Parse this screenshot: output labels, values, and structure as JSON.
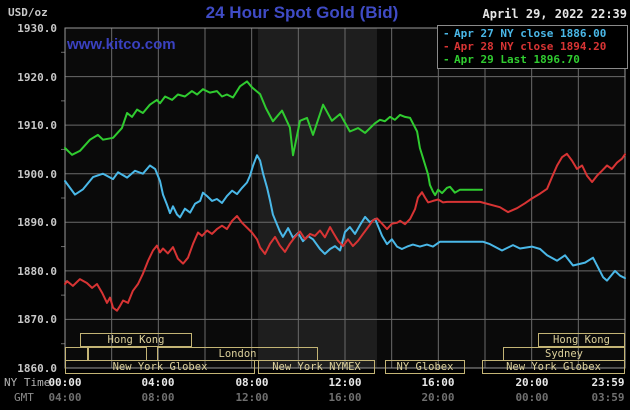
{
  "header": {
    "unit_label": "USD/oz",
    "title": "24 Hour Spot Gold (Bid)",
    "datetime": "April 29, 2022 22:39",
    "watermark": "www.kitco.com"
  },
  "legend": {
    "swatch": "-",
    "items": [
      {
        "key": "apr27",
        "label": "Apr 27 NY close 1886.00",
        "color": "#4ab8e8"
      },
      {
        "key": "apr28",
        "label": "Apr 28 NY close 1894.20",
        "color": "#d83434"
      },
      {
        "key": "apr29",
        "label": "Apr 29 Last 1896.70",
        "color": "#30cc30"
      }
    ]
  },
  "axes": {
    "ny_time_label": "NY Time",
    "gmt_label": "GMT",
    "y_ticks": [
      "1930.0",
      "1920.0",
      "1910.0",
      "1900.0",
      "1890.0",
      "1880.0",
      "1870.0",
      "1860.0"
    ],
    "x_ticks_ny": [
      "00:00",
      "04:00",
      "08:00",
      "12:00",
      "16:00",
      "20:00",
      "23:59"
    ],
    "x_ticks_gmt": [
      "04:00",
      "08:00",
      "12:00",
      "16:00",
      "20:00",
      "00:00",
      "03:59"
    ]
  },
  "sessions": {
    "row1": [
      {
        "label": "Hong Kong",
        "hours": [
          0.64,
          5.44
        ]
      },
      {
        "label": "Hong Kong",
        "hours": [
          20.27,
          24
        ]
      }
    ],
    "row2": [
      {
        "label": "",
        "hours": [
          0,
          0.99
        ]
      },
      {
        "label": "",
        "hours": [
          0.99,
          3.51
        ]
      },
      {
        "label": "London",
        "hours": [
          3.94,
          10.84
        ]
      },
      {
        "label": "Sydney",
        "hours": [
          18.77,
          24
        ]
      }
    ],
    "row3": [
      {
        "label": "New York Globex",
        "hours": [
          0,
          8.14
        ]
      },
      {
        "label": "New York NYMEX",
        "hours": [
          8.27,
          13.29
        ]
      },
      {
        "label": "NY Globex",
        "hours": [
          13.71,
          17.14
        ]
      },
      {
        "label": "New York Globex",
        "hours": [
          17.87,
          24
        ]
      }
    ]
  },
  "chart_data": {
    "type": "line",
    "title": "24 Hour Spot Gold (Bid)",
    "ylabel": "USD/oz",
    "xlabel": "NY Time (hours 00:00-23:59)",
    "xlim_hours": [
      0,
      24
    ],
    "ylim": [
      1860,
      1930
    ],
    "y_grid_step": 10,
    "x_grid_step_hours": 2,
    "grid": true,
    "nymex_band_hours": [
      8.27,
      13.37
    ],
    "colors": {
      "plot_bg": "#0a0a0a",
      "band": "#1e1e1e",
      "grid": "#6a6a6a",
      "border": "#999999"
    },
    "series": [
      {
        "key": "apr27",
        "name": "Apr 27 NY close 1886.00",
        "color": "#4ab8e8",
        "close": 1886.0,
        "points": [
          [
            0,
            1898.5
          ],
          [
            0.43,
            1895.7
          ],
          [
            0.77,
            1896.8
          ],
          [
            1.2,
            1899.3
          ],
          [
            1.63,
            1900.0
          ],
          [
            2.06,
            1898.9
          ],
          [
            2.27,
            1900.3
          ],
          [
            2.66,
            1899.2
          ],
          [
            3.0,
            1900.6
          ],
          [
            3.34,
            1900.0
          ],
          [
            3.64,
            1901.7
          ],
          [
            3.86,
            1901.0
          ],
          [
            4.07,
            1898.5
          ],
          [
            4.2,
            1895.7
          ],
          [
            4.37,
            1893.6
          ],
          [
            4.5,
            1891.9
          ],
          [
            4.63,
            1893.3
          ],
          [
            4.8,
            1891.6
          ],
          [
            4.93,
            1891.0
          ],
          [
            5.14,
            1892.8
          ],
          [
            5.36,
            1892.0
          ],
          [
            5.57,
            1893.8
          ],
          [
            5.79,
            1894.4
          ],
          [
            5.91,
            1896.1
          ],
          [
            6.09,
            1895.4
          ],
          [
            6.3,
            1894.4
          ],
          [
            6.51,
            1894.8
          ],
          [
            6.73,
            1894.0
          ],
          [
            6.94,
            1895.4
          ],
          [
            7.16,
            1896.5
          ],
          [
            7.37,
            1895.8
          ],
          [
            7.59,
            1897.1
          ],
          [
            7.8,
            1898.2
          ],
          [
            7.93,
            1899.6
          ],
          [
            8.06,
            1901.7
          ],
          [
            8.23,
            1903.8
          ],
          [
            8.36,
            1902.7
          ],
          [
            8.49,
            1900.0
          ],
          [
            8.66,
            1897.1
          ],
          [
            8.79,
            1894.4
          ],
          [
            8.91,
            1891.6
          ],
          [
            9.09,
            1889.5
          ],
          [
            9.21,
            1888.1
          ],
          [
            9.34,
            1887.0
          ],
          [
            9.56,
            1888.8
          ],
          [
            9.77,
            1886.8
          ],
          [
            9.99,
            1887.8
          ],
          [
            10.2,
            1886.1
          ],
          [
            10.41,
            1887.2
          ],
          [
            10.63,
            1886.5
          ],
          [
            10.93,
            1884.5
          ],
          [
            11.14,
            1883.5
          ],
          [
            11.36,
            1884.5
          ],
          [
            11.57,
            1885.1
          ],
          [
            11.79,
            1884.2
          ],
          [
            12.0,
            1888.0
          ],
          [
            12.21,
            1889.0
          ],
          [
            12.43,
            1887.6
          ],
          [
            12.64,
            1889.4
          ],
          [
            12.86,
            1891.1
          ],
          [
            13.07,
            1890.0
          ],
          [
            13.29,
            1890.7
          ],
          [
            13.59,
            1887.2
          ],
          [
            13.8,
            1885.5
          ],
          [
            14.01,
            1886.5
          ],
          [
            14.23,
            1885.0
          ],
          [
            14.44,
            1884.5
          ],
          [
            14.66,
            1885.0
          ],
          [
            14.91,
            1885.4
          ],
          [
            15.21,
            1885.0
          ],
          [
            15.51,
            1885.4
          ],
          [
            15.77,
            1885.0
          ],
          [
            16.07,
            1886.0
          ],
          [
            17.91,
            1886.0
          ],
          [
            18.21,
            1885.5
          ],
          [
            18.73,
            1884.2
          ],
          [
            19.2,
            1885.3
          ],
          [
            19.5,
            1884.6
          ],
          [
            20.01,
            1885.0
          ],
          [
            20.36,
            1884.5
          ],
          [
            20.66,
            1883.2
          ],
          [
            21.09,
            1882.1
          ],
          [
            21.43,
            1883.2
          ],
          [
            21.77,
            1881.1
          ],
          [
            22.29,
            1881.7
          ],
          [
            22.63,
            1882.7
          ],
          [
            23.06,
            1878.7
          ],
          [
            23.23,
            1878.0
          ],
          [
            23.57,
            1880.0
          ],
          [
            23.79,
            1879.0
          ],
          [
            24.0,
            1878.5
          ]
        ]
      },
      {
        "key": "apr28",
        "name": "Apr 28 NY close 1894.20",
        "color": "#d83434",
        "close": 1894.2,
        "points": [
          [
            0,
            1877.3
          ],
          [
            0.09,
            1877.9
          ],
          [
            0.34,
            1876.9
          ],
          [
            0.64,
            1878.3
          ],
          [
            0.94,
            1877.5
          ],
          [
            1.16,
            1876.5
          ],
          [
            1.37,
            1877.3
          ],
          [
            1.59,
            1875.5
          ],
          [
            1.8,
            1873.4
          ],
          [
            1.93,
            1874.5
          ],
          [
            2.06,
            1872.4
          ],
          [
            2.23,
            1871.8
          ],
          [
            2.36,
            1872.8
          ],
          [
            2.49,
            1873.9
          ],
          [
            2.7,
            1873.4
          ],
          [
            2.91,
            1875.9
          ],
          [
            3.13,
            1877.3
          ],
          [
            3.34,
            1879.4
          ],
          [
            3.56,
            1882.1
          ],
          [
            3.77,
            1884.2
          ],
          [
            3.94,
            1885.2
          ],
          [
            4.07,
            1883.8
          ],
          [
            4.2,
            1884.6
          ],
          [
            4.41,
            1883.6
          ],
          [
            4.63,
            1884.9
          ],
          [
            4.84,
            1882.5
          ],
          [
            5.06,
            1881.5
          ],
          [
            5.27,
            1882.7
          ],
          [
            5.49,
            1885.6
          ],
          [
            5.7,
            1887.9
          ],
          [
            5.87,
            1887.2
          ],
          [
            6.09,
            1888.3
          ],
          [
            6.3,
            1887.6
          ],
          [
            6.51,
            1888.6
          ],
          [
            6.73,
            1889.3
          ],
          [
            6.94,
            1888.6
          ],
          [
            7.16,
            1890.3
          ],
          [
            7.37,
            1891.3
          ],
          [
            7.59,
            1889.9
          ],
          [
            7.8,
            1888.9
          ],
          [
            8.01,
            1887.9
          ],
          [
            8.23,
            1886.5
          ],
          [
            8.36,
            1884.8
          ],
          [
            8.57,
            1883.5
          ],
          [
            8.79,
            1885.6
          ],
          [
            9.0,
            1887.0
          ],
          [
            9.21,
            1885.2
          ],
          [
            9.43,
            1883.9
          ],
          [
            9.64,
            1885.6
          ],
          [
            9.86,
            1887.0
          ],
          [
            10.07,
            1888.1
          ],
          [
            10.29,
            1886.5
          ],
          [
            10.5,
            1887.6
          ],
          [
            10.71,
            1887.2
          ],
          [
            10.93,
            1888.3
          ],
          [
            11.14,
            1886.9
          ],
          [
            11.36,
            1889.0
          ],
          [
            11.49,
            1887.9
          ],
          [
            11.7,
            1886.2
          ],
          [
            11.91,
            1885.1
          ],
          [
            12.13,
            1886.5
          ],
          [
            12.34,
            1885.1
          ],
          [
            12.56,
            1886.2
          ],
          [
            12.77,
            1887.6
          ],
          [
            12.99,
            1889.0
          ],
          [
            13.2,
            1890.4
          ],
          [
            13.37,
            1890.8
          ],
          [
            13.59,
            1889.7
          ],
          [
            13.8,
            1888.6
          ],
          [
            14.01,
            1889.7
          ],
          [
            14.23,
            1889.9
          ],
          [
            14.36,
            1890.3
          ],
          [
            14.57,
            1889.6
          ],
          [
            14.79,
            1890.7
          ],
          [
            15.0,
            1892.7
          ],
          [
            15.13,
            1895.1
          ],
          [
            15.3,
            1896.2
          ],
          [
            15.43,
            1895.1
          ],
          [
            15.56,
            1894.1
          ],
          [
            15.77,
            1894.4
          ],
          [
            15.99,
            1894.7
          ],
          [
            16.2,
            1894.1
          ],
          [
            16.37,
            1894.2
          ],
          [
            17.79,
            1894.2
          ],
          [
            18.64,
            1893.1
          ],
          [
            18.99,
            1892.1
          ],
          [
            19.37,
            1892.9
          ],
          [
            19.71,
            1893.9
          ],
          [
            20.01,
            1894.9
          ],
          [
            20.36,
            1895.9
          ],
          [
            20.66,
            1896.9
          ],
          [
            20.87,
            1899.3
          ],
          [
            21.09,
            1901.7
          ],
          [
            21.3,
            1903.4
          ],
          [
            21.51,
            1904.1
          ],
          [
            21.73,
            1902.7
          ],
          [
            21.94,
            1901.0
          ],
          [
            22.16,
            1901.7
          ],
          [
            22.37,
            1899.6
          ],
          [
            22.59,
            1898.3
          ],
          [
            22.8,
            1899.6
          ],
          [
            23.01,
            1900.6
          ],
          [
            23.23,
            1901.7
          ],
          [
            23.44,
            1901.0
          ],
          [
            23.66,
            1902.3
          ],
          [
            23.87,
            1903.1
          ],
          [
            24.0,
            1904.0
          ]
        ]
      },
      {
        "key": "apr29",
        "name": "Apr 29 Last 1896.70",
        "color": "#30cc30",
        "last": 1896.7,
        "points": [
          [
            0,
            1905.3
          ],
          [
            0.3,
            1903.9
          ],
          [
            0.64,
            1904.7
          ],
          [
            1.07,
            1907.0
          ],
          [
            1.41,
            1908.0
          ],
          [
            1.63,
            1907.0
          ],
          [
            2.06,
            1907.4
          ],
          [
            2.44,
            1909.4
          ],
          [
            2.66,
            1912.5
          ],
          [
            2.87,
            1911.7
          ],
          [
            3.09,
            1913.2
          ],
          [
            3.34,
            1912.5
          ],
          [
            3.64,
            1914.2
          ],
          [
            3.94,
            1915.2
          ],
          [
            4.07,
            1914.5
          ],
          [
            4.29,
            1915.9
          ],
          [
            4.59,
            1915.2
          ],
          [
            4.84,
            1916.3
          ],
          [
            5.14,
            1915.9
          ],
          [
            5.44,
            1917.0
          ],
          [
            5.66,
            1916.3
          ],
          [
            5.91,
            1917.4
          ],
          [
            6.21,
            1916.7
          ],
          [
            6.51,
            1917.0
          ],
          [
            6.73,
            1915.9
          ],
          [
            6.94,
            1916.3
          ],
          [
            7.2,
            1915.7
          ],
          [
            7.5,
            1918.0
          ],
          [
            7.8,
            1919.0
          ],
          [
            8.01,
            1917.8
          ],
          [
            8.36,
            1916.4
          ],
          [
            8.61,
            1913.5
          ],
          [
            8.91,
            1910.8
          ],
          [
            9.3,
            1913.0
          ],
          [
            9.64,
            1909.5
          ],
          [
            9.77,
            1903.8
          ],
          [
            10.07,
            1910.9
          ],
          [
            10.37,
            1911.5
          ],
          [
            10.63,
            1908.0
          ],
          [
            11.06,
            1914.2
          ],
          [
            11.44,
            1910.9
          ],
          [
            11.79,
            1912.3
          ],
          [
            12.21,
            1908.7
          ],
          [
            12.56,
            1909.4
          ],
          [
            12.86,
            1908.4
          ],
          [
            13.07,
            1909.4
          ],
          [
            13.29,
            1910.4
          ],
          [
            13.5,
            1911.1
          ],
          [
            13.71,
            1910.8
          ],
          [
            13.93,
            1911.7
          ],
          [
            14.14,
            1911.1
          ],
          [
            14.36,
            1912.1
          ],
          [
            14.57,
            1911.7
          ],
          [
            14.79,
            1911.5
          ],
          [
            15.09,
            1908.7
          ],
          [
            15.21,
            1905.3
          ],
          [
            15.34,
            1903.3
          ],
          [
            15.43,
            1901.9
          ],
          [
            15.56,
            1899.8
          ],
          [
            15.64,
            1897.7
          ],
          [
            15.77,
            1896.3
          ],
          [
            15.86,
            1895.6
          ],
          [
            15.99,
            1896.7
          ],
          [
            16.16,
            1896.0
          ],
          [
            16.37,
            1897.1
          ],
          [
            16.5,
            1897.3
          ],
          [
            16.71,
            1896.1
          ],
          [
            16.93,
            1896.7
          ],
          [
            17.87,
            1896.7
          ]
        ]
      }
    ]
  }
}
